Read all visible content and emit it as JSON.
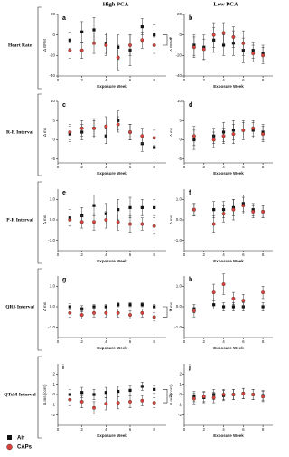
{
  "column_titles": [
    "High PCA",
    "Low PCA"
  ],
  "row_labels": [
    "Heart Rate",
    "R-R Interval",
    "P-R Interval",
    "QRS Interval",
    "QTcM Interval"
  ],
  "chart_data": [
    {
      "type": "scatter",
      "label": "a",
      "ylabel": "Δ BPM",
      "xlabel": "Exposure Week",
      "annotation": "*",
      "xlim": [
        0,
        9
      ],
      "xticks": [
        0,
        2,
        4,
        6,
        8
      ],
      "ylim": [
        -40,
        20
      ],
      "yticks": [
        -40,
        -20,
        0,
        20
      ],
      "x": [
        1,
        2,
        3,
        4,
        5,
        6,
        7,
        8
      ],
      "series": [
        {
          "name": "Air",
          "color": "#111111",
          "marker": "square",
          "values": [
            -5,
            3,
            5,
            -8,
            -12,
            -15,
            8,
            0
          ],
          "errors": [
            8,
            10,
            12,
            10,
            12,
            15,
            8,
            10
          ]
        },
        {
          "name": "CAPs",
          "color": "#d9423a",
          "marker": "circle",
          "values": [
            -15,
            -15,
            -8,
            -10,
            -22,
            -10,
            -5,
            -10
          ],
          "errors": [
            8,
            8,
            10,
            10,
            12,
            10,
            8,
            8
          ]
        }
      ]
    },
    {
      "type": "scatter",
      "label": "b",
      "ylabel": "Δ BPM",
      "xlabel": "Exposure Week",
      "xlim": [
        0,
        9
      ],
      "xticks": [
        0,
        2,
        4,
        6,
        8
      ],
      "ylim": [
        -40,
        20
      ],
      "yticks": [
        -40,
        -20,
        0,
        20
      ],
      "x": [
        1,
        2,
        3,
        4,
        5,
        6,
        7,
        8
      ],
      "series": [
        {
          "name": "Air",
          "color": "#111111",
          "marker": "square",
          "values": [
            -10,
            -12,
            -5,
            -10,
            -8,
            -15,
            -15,
            -18
          ],
          "errors": [
            10,
            12,
            12,
            10,
            12,
            12,
            8,
            8
          ]
        },
        {
          "name": "CAPs",
          "color": "#d9423a",
          "marker": "circle",
          "values": [
            -12,
            -14,
            0,
            2,
            -2,
            -8,
            -18,
            -20
          ],
          "errors": [
            10,
            10,
            12,
            10,
            10,
            12,
            8,
            8
          ]
        }
      ]
    },
    {
      "type": "scatter",
      "label": "c",
      "ylabel": "Δ ms",
      "xlabel": "Exposure Week",
      "xlim": [
        0,
        9
      ],
      "xticks": [
        0,
        2,
        4,
        6,
        8
      ],
      "ylim": [
        -6,
        10
      ],
      "yticks": [
        -5,
        0,
        5,
        10
      ],
      "x": [
        1,
        2,
        3,
        4,
        5,
        6,
        7,
        8
      ],
      "series": [
        {
          "name": "Air",
          "color": "#111111",
          "marker": "square",
          "values": [
            1.5,
            2,
            3,
            1,
            5,
            2,
            -1,
            -2
          ],
          "errors": [
            2,
            2,
            2.5,
            2,
            2.5,
            2,
            2,
            2.5
          ]
        },
        {
          "name": "CAPs",
          "color": "#d9423a",
          "marker": "circle",
          "values": [
            2,
            3,
            3,
            3.5,
            4,
            2,
            1,
            0.5
          ],
          "errors": [
            2,
            2,
            2,
            2.5,
            2,
            2,
            2,
            2
          ]
        }
      ]
    },
    {
      "type": "scatter",
      "label": "d",
      "ylabel": "Δ ms",
      "xlabel": "Exposure Week",
      "xlim": [
        0,
        9
      ],
      "xticks": [
        0,
        2,
        4,
        6,
        8
      ],
      "ylim": [
        -6,
        10
      ],
      "yticks": [
        -5,
        0,
        5,
        10
      ],
      "x": [
        1,
        3,
        4,
        5,
        6,
        7,
        8
      ],
      "series": [
        {
          "name": "Air",
          "color": "#111111",
          "marker": "square",
          "values": [
            0,
            1,
            2,
            2.5,
            2.5,
            2.5,
            2
          ],
          "errors": [
            2.5,
            2,
            2.5,
            2.5,
            2.5,
            2,
            2
          ]
        },
        {
          "name": "CAPs",
          "color": "#d9423a",
          "marker": "circle",
          "values": [
            1,
            0,
            1,
            1.5,
            2.5,
            3,
            1.5
          ],
          "errors": [
            2.5,
            2,
            2,
            2.5,
            2,
            2,
            2
          ]
        }
      ]
    },
    {
      "type": "scatter",
      "label": "e",
      "ylabel": "Δ ms",
      "xlabel": "Exposure Week",
      "xlim": [
        0,
        9
      ],
      "xticks": [
        0,
        2,
        4,
        6,
        8
      ],
      "ylim": [
        -1.5,
        1.5
      ],
      "yticks": [
        {
          "value": -1,
          "label": "-1.0"
        },
        {
          "value": 0,
          "label": "0.0"
        },
        {
          "value": 1,
          "label": "1.0"
        }
      ],
      "x": [
        1,
        2,
        3,
        4,
        5,
        6,
        7,
        8
      ],
      "series": [
        {
          "name": "Air",
          "color": "#111111",
          "marker": "square",
          "values": [
            0.1,
            0.2,
            0.7,
            0.3,
            0.5,
            0.6,
            0.6,
            0.6
          ],
          "errors": [
            0.4,
            0.4,
            0.5,
            0.5,
            0.5,
            0.5,
            0.4,
            0.4
          ]
        },
        {
          "name": "CAPs",
          "color": "#d9423a",
          "marker": "circle",
          "values": [
            0,
            -0.1,
            -0.1,
            0,
            -0.1,
            -0.2,
            -0.2,
            -0.3
          ],
          "errors": [
            0.3,
            0.3,
            0.4,
            0.4,
            0.4,
            0.4,
            0.3,
            0.4
          ]
        }
      ]
    },
    {
      "type": "scatter",
      "label": "f",
      "ylabel": "Δ ms",
      "xlabel": "Exposure Week",
      "xlim": [
        0,
        9
      ],
      "xticks": [
        0,
        2,
        4,
        6,
        8
      ],
      "ylim": [
        -1.5,
        1.5
      ],
      "yticks": [
        {
          "value": -1,
          "label": "-1.0"
        },
        {
          "value": 0,
          "label": "0.0"
        },
        {
          "value": 1,
          "label": "1.0"
        }
      ],
      "x": [
        1,
        3,
        4,
        5,
        6,
        7,
        8
      ],
      "series": [
        {
          "name": "Air",
          "color": "#111111",
          "marker": "square",
          "values": [
            0.5,
            0.5,
            0.5,
            0.6,
            0.8,
            0.5,
            0.4
          ],
          "errors": [
            0.3,
            0.4,
            0.4,
            0.4,
            0.4,
            0.3,
            0.3
          ]
        },
        {
          "name": "CAPs",
          "color": "#d9423a",
          "marker": "circle",
          "values": [
            0.5,
            -0.2,
            0.3,
            0.5,
            0.7,
            0.4,
            0.4
          ],
          "errors": [
            0.3,
            0.4,
            0.4,
            0.5,
            0.4,
            0.3,
            0.3
          ]
        }
      ]
    },
    {
      "type": "scatter",
      "label": "g",
      "ylabel": "Δ ms",
      "xlabel": "Exposure Week",
      "annotation": "*",
      "xlim": [
        0,
        9
      ],
      "xticks": [
        0,
        2,
        4,
        6,
        8
      ],
      "ylim": [
        -1.5,
        1.5
      ],
      "yticks": [
        {
          "value": -1,
          "label": "-1.0"
        },
        {
          "value": 0,
          "label": "0.0"
        },
        {
          "value": 1,
          "label": "1.0"
        }
      ],
      "x": [
        1,
        2,
        3,
        4,
        5,
        6,
        7,
        8
      ],
      "series": [
        {
          "name": "Air",
          "color": "#111111",
          "marker": "square",
          "values": [
            0,
            -0.1,
            0,
            0,
            0.1,
            0.1,
            0.1,
            0
          ],
          "errors": [
            0.15,
            0.15,
            0.1,
            0.1,
            0.1,
            0.1,
            0.1,
            0.1
          ]
        },
        {
          "name": "CAPs",
          "color": "#d9423a",
          "marker": "circle",
          "values": [
            -0.3,
            -0.4,
            -0.3,
            -0.3,
            -0.3,
            -0.4,
            -0.3,
            -0.5
          ],
          "errors": [
            0.2,
            0.2,
            0.2,
            0.2,
            0.2,
            0.2,
            0.2,
            0.2
          ]
        }
      ]
    },
    {
      "type": "scatter",
      "label": "h",
      "ylabel": "Δ ms",
      "xlabel": "Exposure Week",
      "xlim": [
        0,
        9
      ],
      "xticks": [
        0,
        2,
        4,
        6,
        8
      ],
      "ylim": [
        -1.5,
        1.5
      ],
      "yticks": [
        {
          "value": -1,
          "label": "-1.0"
        },
        {
          "value": 0,
          "label": "0.0"
        },
        {
          "value": 1,
          "label": "1.0"
        }
      ],
      "x": [
        1,
        3,
        4,
        5,
        6,
        8
      ],
      "series": [
        {
          "name": "Air",
          "color": "#111111",
          "marker": "square",
          "values": [
            -0.1,
            0.1,
            0,
            0,
            0,
            0
          ],
          "errors": [
            0.2,
            0.2,
            0.2,
            0.2,
            0.2,
            0.2
          ]
        },
        {
          "name": "CAPs",
          "color": "#d9423a",
          "marker": "circle",
          "values": [
            -0.2,
            0.7,
            1.1,
            0.4,
            0.3,
            0.7
          ],
          "errors": [
            0.3,
            0.4,
            0.5,
            0.3,
            0.3,
            0.3
          ]
        }
      ]
    },
    {
      "type": "scatter",
      "label": "i",
      "ylabel": "Δ ms (corr.)",
      "xlabel": "Exposure Week",
      "annotation": "#",
      "xlim": [
        0,
        9
      ],
      "xticks": [
        0,
        2,
        4,
        6,
        8
      ],
      "ylim": [
        -3,
        3
      ],
      "yticks": [
        -2,
        -1,
        0,
        1,
        2
      ],
      "x": [
        1,
        2,
        3,
        4,
        5,
        6,
        7,
        8
      ],
      "series": [
        {
          "name": "Air",
          "color": "#111111",
          "marker": "square",
          "values": [
            0,
            0.2,
            0,
            0.2,
            0.3,
            0.4,
            0.8,
            0.5
          ],
          "errors": [
            0.5,
            0.5,
            0.5,
            0.5,
            0.5,
            0.5,
            0.4,
            0.4
          ]
        },
        {
          "name": "CAPs",
          "color": "#d9423a",
          "marker": "circle",
          "values": [
            -0.5,
            -0.7,
            -1.3,
            -0.9,
            -0.8,
            -0.7,
            -0.6,
            -0.8
          ],
          "errors": [
            0.6,
            0.6,
            0.6,
            0.6,
            0.6,
            0.6,
            0.5,
            0.5
          ]
        }
      ]
    },
    {
      "type": "scatter",
      "label": "j",
      "ylabel": "Δ ms (corr.)",
      "xlabel": "Exposure Week",
      "xlim": [
        0,
        9
      ],
      "xticks": [
        0,
        2,
        4,
        6,
        8
      ],
      "ylim": [
        -3,
        3
      ],
      "yticks": [
        -2,
        -1,
        0,
        1,
        2
      ],
      "x": [
        1,
        2,
        3,
        4,
        5,
        6,
        7,
        8
      ],
      "series": [
        {
          "name": "Air",
          "color": "#111111",
          "marker": "square",
          "values": [
            -0.2,
            -0.3,
            0,
            -0.1,
            0,
            0.1,
            0,
            -0.1
          ],
          "errors": [
            0.5,
            0.5,
            0.5,
            0.5,
            0.5,
            0.5,
            0.5,
            0.5
          ]
        },
        {
          "name": "CAPs",
          "color": "#d9423a",
          "marker": "circle",
          "values": [
            -0.4,
            -0.2,
            -0.3,
            0,
            0,
            0.1,
            0,
            -0.2
          ],
          "errors": [
            0.5,
            0.5,
            0.5,
            0.5,
            0.5,
            0.5,
            0.5,
            0.5
          ]
        }
      ]
    }
  ]
}
